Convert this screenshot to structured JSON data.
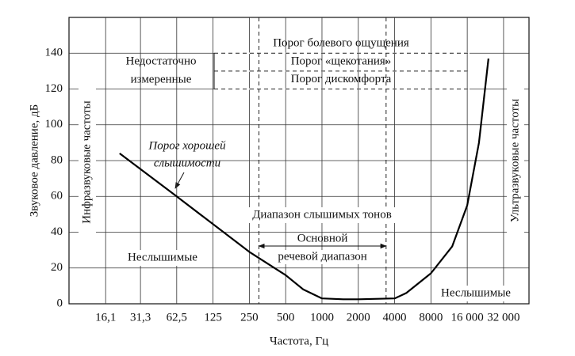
{
  "chart_data": {
    "type": "line",
    "x_label": "Частота,  Гц",
    "y_label": "Звуковое давление,  дБ",
    "xscale": "log",
    "xlim": [
      8,
      52000
    ],
    "ylim": [
      0,
      160
    ],
    "grid": true,
    "color": "#000000",
    "xticks": [
      {
        "value": 16.1,
        "label": "16,1"
      },
      {
        "value": 31.3,
        "label": "31,3"
      },
      {
        "value": 62.5,
        "label": "62,5"
      },
      125,
      250,
      500,
      1000,
      2000,
      4000,
      8000,
      {
        "value": 16000,
        "label": "16 000"
      },
      {
        "value": 32000,
        "label": "32 000"
      }
    ],
    "yticks": [
      0,
      20,
      40,
      60,
      80,
      100,
      120,
      140
    ],
    "x": [
      21,
      62.5,
      250,
      500,
      700,
      1000,
      1500,
      2000,
      4000,
      5000,
      8000,
      12000,
      16000,
      20000,
      24000
    ],
    "values": [
      84,
      60,
      29,
      16,
      8,
      3,
      2.5,
      2.5,
      3,
      6,
      17,
      32,
      55,
      90,
      137
    ],
    "thresholds": [
      {
        "label": "Порог болевого ощущения",
        "value": 140
      },
      {
        "label": "Порог «щекотания»",
        "value": 130
      },
      {
        "label": "Порог дискомфорта",
        "value": 120
      }
    ],
    "unmeasured_label": [
      "Недостаточно",
      "измеренные"
    ],
    "speech_range": {
      "label": [
        "Основной",
        "речевой диапазон"
      ],
      "x": [
        300,
        3400
      ]
    },
    "curve_label": [
      "Порог хорошей",
      "слышимости"
    ],
    "range_label": "Диапазон слышимых тонов",
    "side_labels": [
      "Инфразвуковые частоты",
      "Ультразвуковые частоты"
    ],
    "inaudible_labels": [
      "Неслышимые",
      "Неслышимые"
    ]
  }
}
